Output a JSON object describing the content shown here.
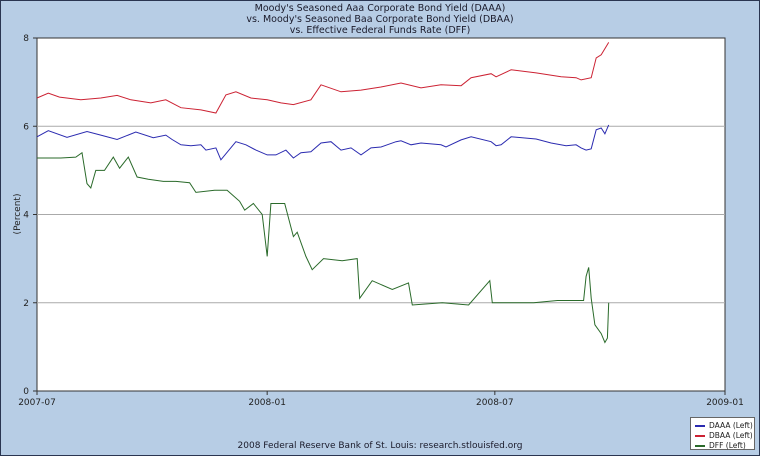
{
  "chart_data": {
    "type": "line",
    "title": [
      "Moody's Seasoned Aaa Corporate Bond Yield (DAAA)",
      "vs.  Moody's Seasoned Baa Corporate Bond Yield (DBAA)",
      "vs.  Effective Federal Funds Rate (DFF)"
    ],
    "ylabel": "(Percent)",
    "xlabel": "",
    "ylim": [
      0,
      8
    ],
    "xlim": [
      "2007-07-01",
      "2009-01-01"
    ],
    "yticks": [
      "0",
      "2",
      "4",
      "6",
      "8"
    ],
    "xticks": [
      {
        "date": "2007-07-01",
        "label": "2007-07"
      },
      {
        "date": "2008-01-01",
        "label": "2008-01"
      },
      {
        "date": "2008-07-01",
        "label": "2008-07"
      },
      {
        "date": "2009-01-01",
        "label": "2009-01"
      }
    ],
    "grid": "horizontal",
    "legend_placement": "bottom-right",
    "series": [
      {
        "name": "DAAA (Left)",
        "color": "#2b2bb0",
        "points": [
          [
            "2007-07-01",
            5.76
          ],
          [
            "2007-07-10",
            5.9
          ],
          [
            "2007-07-25",
            5.75
          ],
          [
            "2007-08-10",
            5.88
          ],
          [
            "2007-08-21",
            5.8
          ],
          [
            "2007-09-03",
            5.7
          ],
          [
            "2007-09-18",
            5.87
          ],
          [
            "2007-10-02",
            5.74
          ],
          [
            "2007-10-12",
            5.8
          ],
          [
            "2007-10-17",
            5.7
          ],
          [
            "2007-10-24",
            5.58
          ],
          [
            "2007-11-01",
            5.56
          ],
          [
            "2007-11-09",
            5.58
          ],
          [
            "2007-11-13",
            5.46
          ],
          [
            "2007-11-21",
            5.51
          ],
          [
            "2007-11-25",
            5.24
          ],
          [
            "2007-12-07",
            5.65
          ],
          [
            "2007-12-15",
            5.58
          ],
          [
            "2007-12-23",
            5.46
          ],
          [
            "2008-01-01",
            5.35
          ],
          [
            "2008-01-08",
            5.35
          ],
          [
            "2008-01-16",
            5.46
          ],
          [
            "2008-01-22",
            5.28
          ],
          [
            "2008-01-28",
            5.4
          ],
          [
            "2008-02-05",
            5.42
          ],
          [
            "2008-02-13",
            5.62
          ],
          [
            "2008-02-21",
            5.65
          ],
          [
            "2008-02-29",
            5.46
          ],
          [
            "2008-03-08",
            5.51
          ],
          [
            "2008-03-16",
            5.35
          ],
          [
            "2008-03-24",
            5.51
          ],
          [
            "2008-04-01",
            5.53
          ],
          [
            "2008-04-13",
            5.65
          ],
          [
            "2008-04-17",
            5.67
          ],
          [
            "2008-04-25",
            5.58
          ],
          [
            "2008-05-03",
            5.62
          ],
          [
            "2008-05-19",
            5.58
          ],
          [
            "2008-05-23",
            5.53
          ],
          [
            "2008-06-04",
            5.69
          ],
          [
            "2008-06-12",
            5.76
          ],
          [
            "2008-06-28",
            5.65
          ],
          [
            "2008-07-02",
            5.56
          ],
          [
            "2008-07-06",
            5.58
          ],
          [
            "2008-07-14",
            5.76
          ],
          [
            "2008-08-03",
            5.71
          ],
          [
            "2008-08-15",
            5.62
          ],
          [
            "2008-08-27",
            5.56
          ],
          [
            "2008-09-04",
            5.58
          ],
          [
            "2008-09-08",
            5.51
          ],
          [
            "2008-09-12",
            5.46
          ],
          [
            "2008-09-16",
            5.49
          ],
          [
            "2008-09-20",
            5.92
          ],
          [
            "2008-09-24",
            5.96
          ],
          [
            "2008-09-27",
            5.83
          ],
          [
            "2008-09-30",
            6.03
          ]
        ]
      },
      {
        "name": "DBAA (Left)",
        "color": "#cc2233",
        "points": [
          [
            "2007-07-01",
            6.64
          ],
          [
            "2007-07-10",
            6.75
          ],
          [
            "2007-07-19",
            6.66
          ],
          [
            "2007-08-05",
            6.6
          ],
          [
            "2007-08-21",
            6.64
          ],
          [
            "2007-09-03",
            6.7
          ],
          [
            "2007-09-14",
            6.6
          ],
          [
            "2007-09-30",
            6.53
          ],
          [
            "2007-10-12",
            6.6
          ],
          [
            "2007-10-24",
            6.42
          ],
          [
            "2007-11-09",
            6.37
          ],
          [
            "2007-11-21",
            6.3
          ],
          [
            "2007-11-29",
            6.71
          ],
          [
            "2007-12-07",
            6.78
          ],
          [
            "2007-12-19",
            6.64
          ],
          [
            "2008-01-01",
            6.6
          ],
          [
            "2008-01-12",
            6.53
          ],
          [
            "2008-01-22",
            6.49
          ],
          [
            "2008-02-05",
            6.6
          ],
          [
            "2008-02-13",
            6.94
          ],
          [
            "2008-02-29",
            6.78
          ],
          [
            "2008-03-16",
            6.82
          ],
          [
            "2008-04-01",
            6.89
          ],
          [
            "2008-04-17",
            6.98
          ],
          [
            "2008-05-03",
            6.87
          ],
          [
            "2008-05-19",
            6.94
          ],
          [
            "2008-06-04",
            6.92
          ],
          [
            "2008-06-12",
            7.1
          ],
          [
            "2008-06-28",
            7.19
          ],
          [
            "2008-07-02",
            7.12
          ],
          [
            "2008-07-14",
            7.28
          ],
          [
            "2008-08-03",
            7.21
          ],
          [
            "2008-08-23",
            7.12
          ],
          [
            "2008-09-04",
            7.1
          ],
          [
            "2008-09-08",
            7.05
          ],
          [
            "2008-09-16",
            7.1
          ],
          [
            "2008-09-20",
            7.55
          ],
          [
            "2008-09-24",
            7.62
          ],
          [
            "2008-09-30",
            7.9
          ]
        ]
      },
      {
        "name": "DFF (Left)",
        "color": "#2a6a2a",
        "points": [
          [
            "2007-07-01",
            5.28
          ],
          [
            "2007-07-20",
            5.28
          ],
          [
            "2007-08-01",
            5.3
          ],
          [
            "2007-08-06",
            5.4
          ],
          [
            "2007-08-10",
            4.7
          ],
          [
            "2007-08-13",
            4.6
          ],
          [
            "2007-08-17",
            5.0
          ],
          [
            "2007-08-24",
            5.0
          ],
          [
            "2007-08-31",
            5.3
          ],
          [
            "2007-09-05",
            5.05
          ],
          [
            "2007-09-12",
            5.3
          ],
          [
            "2007-09-19",
            4.85
          ],
          [
            "2007-09-28",
            4.8
          ],
          [
            "2007-10-10",
            4.75
          ],
          [
            "2007-10-20",
            4.75
          ],
          [
            "2007-10-31",
            4.72
          ],
          [
            "2007-11-05",
            4.5
          ],
          [
            "2007-11-20",
            4.55
          ],
          [
            "2007-11-30",
            4.55
          ],
          [
            "2007-12-10",
            4.3
          ],
          [
            "2007-12-14",
            4.1
          ],
          [
            "2007-12-21",
            4.25
          ],
          [
            "2007-12-28",
            4.0
          ],
          [
            "2008-01-01",
            3.05
          ],
          [
            "2008-01-04",
            4.25
          ],
          [
            "2008-01-15",
            4.25
          ],
          [
            "2008-01-22",
            3.5
          ],
          [
            "2008-01-25",
            3.6
          ],
          [
            "2008-02-01",
            3.05
          ],
          [
            "2008-02-06",
            2.75
          ],
          [
            "2008-02-15",
            3.0
          ],
          [
            "2008-03-01",
            2.95
          ],
          [
            "2008-03-13",
            3.0
          ],
          [
            "2008-03-15",
            2.1
          ],
          [
            "2008-03-25",
            2.5
          ],
          [
            "2008-04-10",
            2.3
          ],
          [
            "2008-04-23",
            2.45
          ],
          [
            "2008-04-26",
            1.95
          ],
          [
            "2008-05-20",
            2.0
          ],
          [
            "2008-06-10",
            1.95
          ],
          [
            "2008-06-27",
            2.5
          ],
          [
            "2008-06-29",
            2.0
          ],
          [
            "2008-08-01",
            2.0
          ],
          [
            "2008-08-20",
            2.05
          ],
          [
            "2008-09-10",
            2.05
          ],
          [
            "2008-09-12",
            2.6
          ],
          [
            "2008-09-14",
            2.8
          ],
          [
            "2008-09-16",
            2.1
          ],
          [
            "2008-09-19",
            1.5
          ],
          [
            "2008-09-24",
            1.3
          ],
          [
            "2008-09-27",
            1.1
          ],
          [
            "2008-09-29",
            1.2
          ],
          [
            "2008-09-30",
            2.0
          ]
        ]
      }
    ]
  },
  "footer": "2008 Federal Reserve Bank of St. Louis: research.stlouisfed.org"
}
